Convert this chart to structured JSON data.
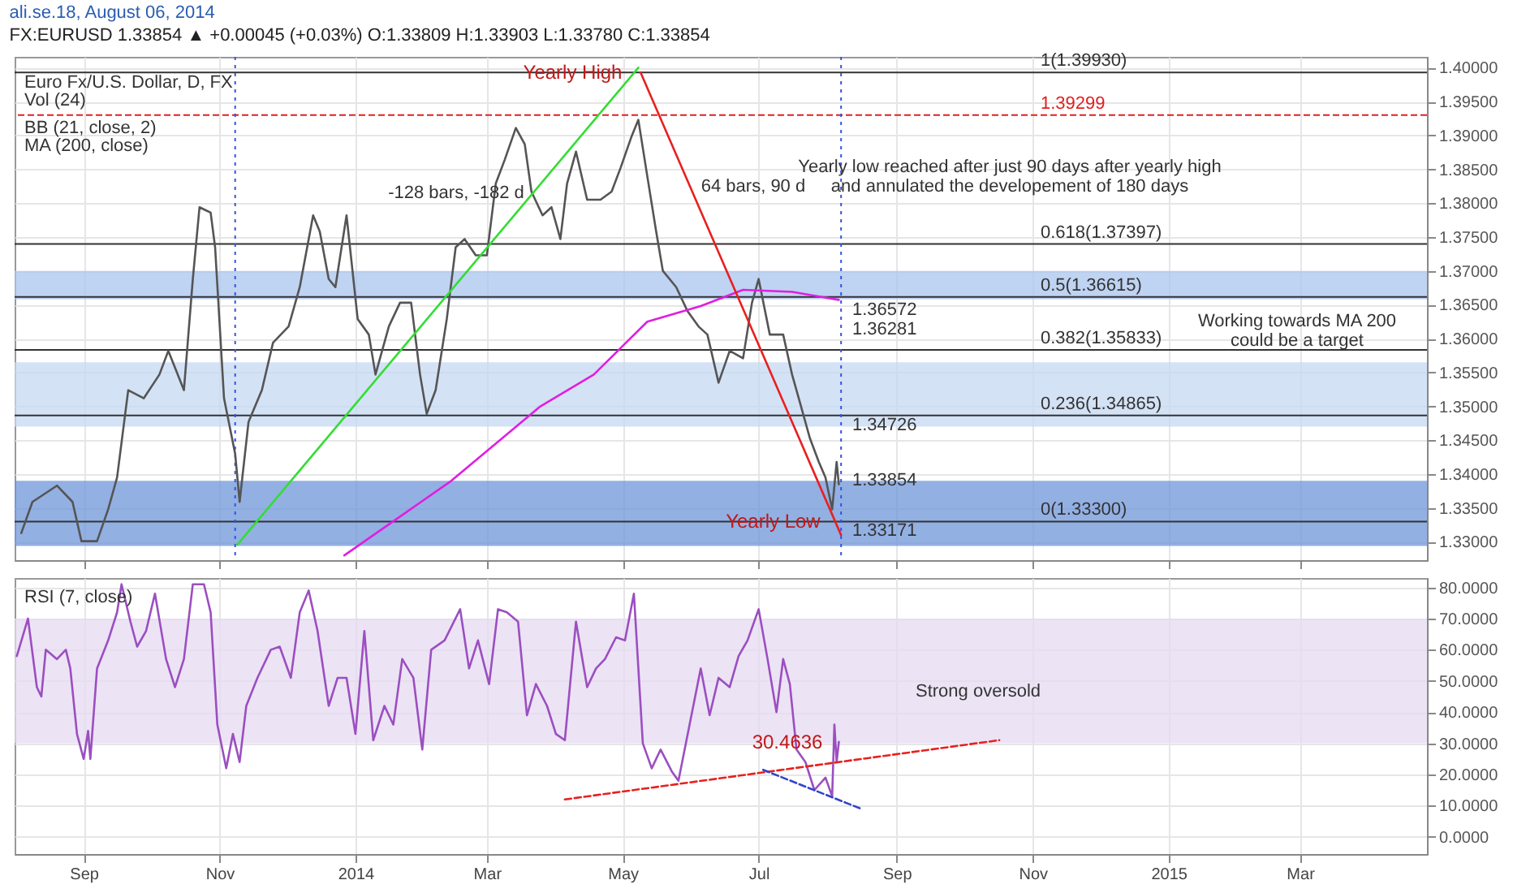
{
  "chart_data": [
    {
      "type": "line",
      "title": "ali.se.18, August 06, 2014",
      "subtitle": "FX:EURUSD 1.33854 ▲ +0.00045 (+0.03%) O:1.33809 H:1.33903 L:1.33780 C:1.33854",
      "xlim": [
        "2013-08-01",
        "2015-04-27"
      ],
      "ylim": [
        1.3273,
        1.4016
      ],
      "yticks": [
        {
          "value": 1.33,
          "label": "1.33000"
        },
        {
          "value": 1.335,
          "label": "1.33500"
        },
        {
          "value": 1.34,
          "label": "1.34000"
        },
        {
          "value": 1.345,
          "label": "1.34500"
        },
        {
          "value": 1.35,
          "label": "1.35000"
        },
        {
          "value": 1.355,
          "label": "1.35500"
        },
        {
          "value": 1.36,
          "label": "1.36000"
        },
        {
          "value": 1.365,
          "label": "1.36500"
        },
        {
          "value": 1.37,
          "label": "1.37000"
        },
        {
          "value": 1.375,
          "label": "1.37500"
        },
        {
          "value": 1.38,
          "label": "1.38000"
        },
        {
          "value": 1.385,
          "label": "1.38500"
        },
        {
          "value": 1.39,
          "label": "1.39000"
        },
        {
          "value": 1.395,
          "label": "1.39500"
        },
        {
          "value": 1.4,
          "label": "1.40000"
        }
      ],
      "tick_labels": "y",
      "grid": true,
      "marker": "none",
      "series": [
        {
          "color": "#555555",
          "x": [
            "2013-08-04",
            "2013-08-09",
            "2013-08-20",
            "2013-08-27",
            "2013-08-31",
            "2013-09-07",
            "2013-09-12",
            "2013-09-16",
            "2013-09-21",
            "2013-09-28",
            "2013-10-05",
            "2013-10-09",
            "2013-10-16",
            "2013-10-20",
            "2013-10-23",
            "2013-10-28",
            "2013-10-30",
            "2013-11-03",
            "2013-11-08",
            "2013-11-10",
            "2013-11-14",
            "2013-11-20",
            "2013-11-25",
            "2013-12-02",
            "2013-12-07",
            "2013-12-13",
            "2013-12-16",
            "2013-12-20",
            "2013-12-23",
            "2013-12-28",
            "2014-01-02",
            "2014-01-07",
            "2014-01-10",
            "2014-01-16",
            "2014-01-21",
            "2014-01-26",
            "2014-01-30",
            "2014-02-02",
            "2014-02-06",
            "2014-02-11",
            "2014-02-15",
            "2014-02-19",
            "2014-02-24",
            "2014-03-01",
            "2014-03-05",
            "2014-03-09",
            "2014-03-14",
            "2014-03-18",
            "2014-03-21",
            "2014-03-26",
            "2014-03-30",
            "2014-04-03",
            "2014-04-06",
            "2014-04-10",
            "2014-04-15",
            "2014-04-21",
            "2014-04-26",
            "2014-04-30",
            "2014-05-05",
            "2014-05-08",
            "2014-05-12",
            "2014-05-16",
            "2014-05-19",
            "2014-05-25",
            "2014-05-30",
            "2014-06-04",
            "2014-06-08",
            "2014-06-13",
            "2014-06-18",
            "2014-06-24",
            "2014-06-28",
            "2014-07-01",
            "2014-07-06",
            "2014-07-12",
            "2014-07-16",
            "2014-07-19",
            "2014-07-24",
            "2014-07-28",
            "2014-07-31",
            "2014-08-03",
            "2014-08-05",
            "2014-08-06"
          ],
          "values": [
            1.3313,
            1.3359,
            1.3383,
            1.3359,
            1.3301,
            1.3301,
            1.3348,
            1.3395,
            1.3524,
            1.3512,
            1.3547,
            1.3582,
            1.3524,
            1.3688,
            1.3794,
            1.3786,
            1.3735,
            1.3512,
            1.343,
            1.3359,
            1.3477,
            1.3524,
            1.3594,
            1.3618,
            1.3676,
            1.3782,
            1.3758,
            1.3688,
            1.3676,
            1.3782,
            1.3629,
            1.3606,
            1.3547,
            1.3618,
            1.3653,
            1.3653,
            1.3547,
            1.3489,
            1.3524,
            1.3629,
            1.3735,
            1.3747,
            1.3723,
            1.3723,
            1.3829,
            1.3864,
            1.3911,
            1.3887,
            1.3817,
            1.3782,
            1.3794,
            1.3747,
            1.3829,
            1.3876,
            1.3805,
            1.3805,
            1.3817,
            1.3852,
            1.3899,
            1.3923,
            1.384,
            1.3758,
            1.37,
            1.3676,
            1.3641,
            1.3618,
            1.3606,
            1.3535,
            1.3582,
            1.3571,
            1.3653,
            1.3688,
            1.3606,
            1.3606,
            1.3547,
            1.3512,
            1.3453,
            1.3418,
            1.3395,
            1.3348,
            1.3418,
            1.3385
          ]
        },
        {
          "color": "#e01ee0",
          "x": [
            "2013-12-27",
            "2014-02-13",
            "2014-03-25",
            "2014-04-18",
            "2014-05-12",
            "2014-06-05",
            "2014-06-24",
            "2014-07-16",
            "2014-08-06"
          ],
          "values": [
            1.328,
            1.339,
            1.35,
            1.3547,
            1.3625,
            1.3648,
            1.3672,
            1.3669,
            1.36572
          ]
        },
        {
          "color": "#33dd33",
          "x": [
            "2013-11-09",
            "2014-05-08"
          ],
          "values": [
            1.3296,
            1.4
          ]
        },
        {
          "color": "#e82020",
          "x": [
            "2014-05-09",
            "2014-08-07"
          ],
          "values": [
            1.3993,
            1.331
          ]
        }
      ],
      "bands": [
        {
          "axis": "y",
          "from": 1.3294,
          "to": 1.339,
          "color": "#6f95d9"
        },
        {
          "axis": "y",
          "from": 1.3658,
          "to": 1.37,
          "color": "#a9c4ee"
        },
        {
          "axis": "y",
          "from": 1.347,
          "to": 1.3565,
          "color": "#c5d8f3"
        }
      ],
      "ref_lines": [
        {
          "axis": "y",
          "value": 1.39299,
          "label": "1.39299",
          "color": "#e02020",
          "line_style": "dashed"
        },
        {
          "axis": "y",
          "value": 1.3993,
          "label": "1(1.39930)",
          "color": "#333333",
          "line_style": "solid"
        },
        {
          "axis": "y",
          "value": 1.37397,
          "label": "0.618(1.37397)",
          "color": "#333333",
          "line_style": "solid"
        },
        {
          "axis": "y",
          "value": 1.36615,
          "label": "0.5(1.36615)",
          "color": "#333333",
          "line_style": "solid"
        },
        {
          "axis": "y",
          "value": 1.35833,
          "label": "0.382(1.35833)",
          "color": "#333333",
          "line_style": "solid"
        },
        {
          "axis": "y",
          "value": 1.34865,
          "label": "0.236(1.34865)",
          "color": "#333333",
          "line_style": "solid"
        },
        {
          "axis": "y",
          "value": 1.333,
          "label": "0(1.33300)",
          "color": "#333333",
          "line_style": "solid"
        },
        {
          "axis": "x",
          "value": "2013-11-08",
          "color": "#3355dd",
          "line_style": "dotted"
        },
        {
          "axis": "x",
          "value": "2014-08-07",
          "color": "#3355dd",
          "line_style": "dotted"
        }
      ],
      "annotations": [
        "Euro Fx/U.S. Dollar, D, FX",
        "Vol (24)",
        "BB (21, close, 2)",
        "MA (200, close)",
        {
          "text": "Yearly High",
          "x": "2014-05-08",
          "y": 1.3993
        },
        {
          "text": "Yearly Low",
          "x": "2014-08-05",
          "y": 1.333
        },
        "-128 bars, -182 d",
        "64 bars, 90 d",
        "Yearly low reached after just 90 days after yearly high\nand annulated the developement of 180 days",
        "Working towards MA 200\ncould be a target",
        "1.36572",
        "1.36281",
        "1.34726",
        "1.33854",
        "1.33171"
      ]
    },
    {
      "type": "line",
      "xlim": [
        "2013-08-01",
        "2015-04-27"
      ],
      "xticks": [
        {
          "value": "2013-09-01",
          "label": "Sep"
        },
        {
          "value": "2013-11-01",
          "label": "Nov"
        },
        {
          "value": "2014-01-01",
          "label": "2014"
        },
        {
          "value": "2014-03-01",
          "label": "Mar"
        },
        {
          "value": "2014-05-01",
          "label": "May"
        },
        {
          "value": "2014-07-01",
          "label": "Jul"
        },
        {
          "value": "2014-09-01",
          "label": "Sep"
        },
        {
          "value": "2014-11-01",
          "label": "Nov"
        },
        {
          "value": "2015-01-01",
          "label": "2015"
        },
        {
          "value": "2015-03-01",
          "label": "Mar"
        }
      ],
      "ylim": [
        -5.5,
        83
      ],
      "yticks": [
        {
          "value": 0,
          "label": "0.0000"
        },
        {
          "value": 10,
          "label": "10.0000"
        },
        {
          "value": 20,
          "label": "20.0000"
        },
        {
          "value": 30,
          "label": "30.0000"
        },
        {
          "value": 40,
          "label": "40.0000"
        },
        {
          "value": 50,
          "label": "50.0000"
        },
        {
          "value": 60,
          "label": "60.0000"
        },
        {
          "value": 70,
          "label": "70.0000"
        },
        {
          "value": 80,
          "label": "80.0000"
        }
      ],
      "grid": true,
      "marker": "none",
      "series": [
        {
          "color": "#9b4fc0",
          "x": [
            "2013-08-02",
            "2013-08-07",
            "2013-08-11",
            "2013-08-13",
            "2013-08-15",
            "2013-08-20",
            "2013-08-24",
            "2013-08-26",
            "2013-08-29",
            "2013-09-01",
            "2013-09-03",
            "2013-09-04",
            "2013-09-07",
            "2013-09-12",
            "2013-09-16",
            "2013-09-18",
            "2013-09-22",
            "2013-09-25",
            "2013-09-29",
            "2013-10-03",
            "2013-10-08",
            "2013-10-12",
            "2013-10-16",
            "2013-10-20",
            "2013-10-25",
            "2013-10-28",
            "2013-10-31",
            "2013-11-04",
            "2013-11-07",
            "2013-11-10",
            "2013-11-13",
            "2013-11-18",
            "2013-11-24",
            "2013-11-28",
            "2013-12-03",
            "2013-12-07",
            "2013-12-11",
            "2013-12-15",
            "2013-12-20",
            "2013-12-24",
            "2013-12-28",
            "2014-01-01",
            "2014-01-05",
            "2014-01-09",
            "2014-01-14",
            "2014-01-18",
            "2014-01-22",
            "2014-01-27",
            "2014-01-31",
            "2014-02-04",
            "2014-02-10",
            "2014-02-17",
            "2014-02-21",
            "2014-02-25",
            "2014-03-02",
            "2014-03-06",
            "2014-03-10",
            "2014-03-15",
            "2014-03-19",
            "2014-03-23",
            "2014-03-28",
            "2014-04-01",
            "2014-04-05",
            "2014-04-10",
            "2014-04-15",
            "2014-04-19",
            "2014-04-23",
            "2014-04-28",
            "2014-05-02",
            "2014-05-06",
            "2014-05-10",
            "2014-05-14",
            "2014-05-18",
            "2014-05-23",
            "2014-05-26",
            "2014-05-31",
            "2014-06-05",
            "2014-06-09",
            "2014-06-13",
            "2014-06-18",
            "2014-06-22",
            "2014-06-26",
            "2014-07-01",
            "2014-07-05",
            "2014-07-09",
            "2014-07-12",
            "2014-07-15",
            "2014-07-18",
            "2014-07-22",
            "2014-07-26",
            "2014-07-31",
            "2014-08-03",
            "2014-08-04",
            "2014-08-05",
            "2014-08-06"
          ],
          "values": [
            58,
            70,
            48,
            45,
            60,
            57,
            60,
            54,
            33,
            25,
            34,
            25,
            54,
            63,
            72,
            81,
            69,
            61,
            66,
            78,
            57,
            48,
            57,
            81,
            81,
            72,
            36,
            22,
            33,
            24,
            42,
            51,
            60,
            61,
            51,
            72,
            79,
            66,
            42,
            51,
            51,
            33,
            66,
            31,
            42,
            36,
            57,
            51,
            28,
            60,
            63,
            73,
            54,
            63,
            49,
            73,
            72,
            69,
            39,
            49,
            42,
            33,
            31,
            69,
            48,
            54,
            57,
            64,
            63,
            78,
            30,
            22,
            28,
            21,
            18,
            36,
            54,
            39,
            51,
            48,
            58,
            63,
            73,
            57,
            40,
            57,
            49,
            28,
            24,
            15,
            19,
            13,
            36,
            24,
            30.4636
          ]
        },
        {
          "color": "#e82020",
          "line_style": "dashed",
          "x": [
            "2014-04-05",
            "2014-10-17"
          ],
          "values": [
            12,
            31
          ]
        },
        {
          "color": "#3344cc",
          "line_style": "dashed",
          "x": [
            "2014-07-03",
            "2014-08-16"
          ],
          "values": [
            21.5,
            9
          ]
        }
      ],
      "bands": [
        {
          "axis": "y",
          "from": 30,
          "to": 70,
          "color": "#e6d9f2"
        }
      ],
      "annotations": [
        "RSI (7, close)",
        {
          "text": "30.4636",
          "x": "2014-08-06",
          "y": 30.4636
        },
        "Strong oversold"
      ]
    }
  ]
}
